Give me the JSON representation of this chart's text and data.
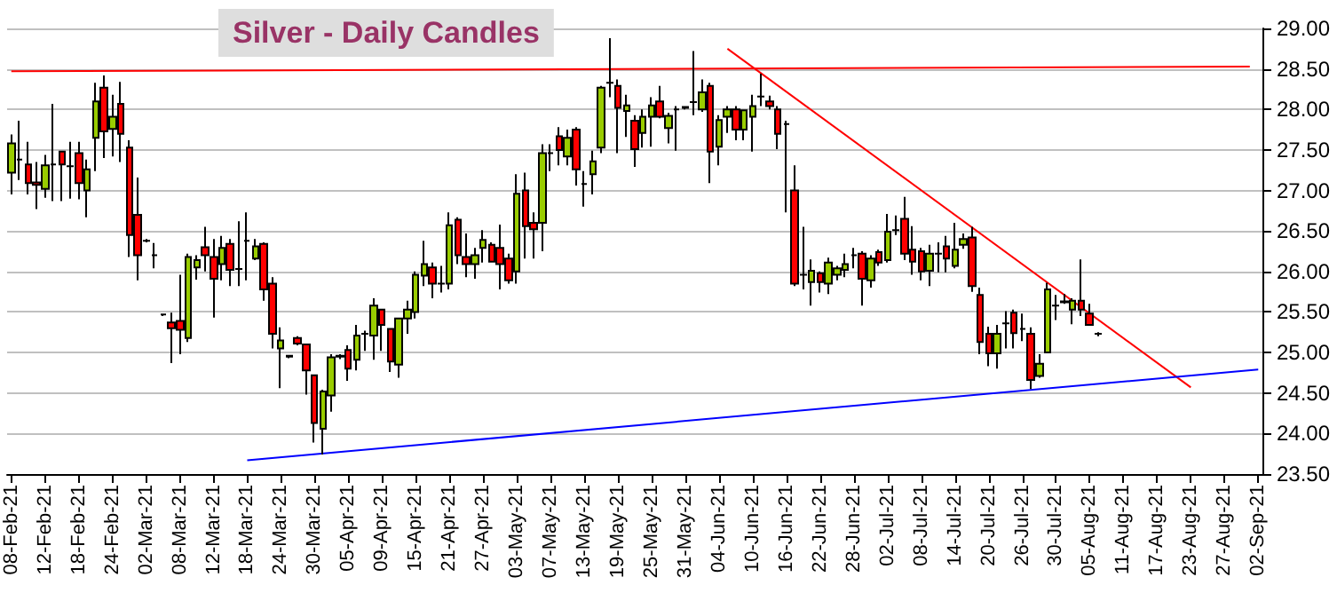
{
  "chart_data": {
    "type": "candlestick",
    "title": "Silver - Daily Candles",
    "categories": [
      "08-Feb-21",
      null,
      null,
      null,
      "12-Feb-21",
      null,
      null,
      null,
      "18-Feb-21",
      null,
      null,
      null,
      "24-Feb-21",
      null,
      null,
      null,
      "02-Mar-21",
      null,
      null,
      null,
      "08-Mar-21",
      null,
      null,
      null,
      "12-Mar-21",
      null,
      null,
      null,
      "18-Mar-21",
      null,
      null,
      null,
      "24-Mar-21",
      null,
      null,
      null,
      "30-Mar-21",
      null,
      null,
      null,
      "05-Apr-21",
      null,
      null,
      null,
      "09-Apr-21",
      null,
      null,
      null,
      "15-Apr-21",
      null,
      null,
      null,
      "21-Apr-21",
      null,
      null,
      null,
      "27-Apr-21",
      null,
      null,
      null,
      "03-May-21",
      null,
      null,
      null,
      "07-May-21",
      null,
      null,
      null,
      "13-May-21",
      null,
      null,
      null,
      "19-May-21",
      null,
      null,
      null,
      "25-May-21",
      null,
      null,
      null,
      "31-May-21",
      null,
      null,
      null,
      "04-Jun-21",
      null,
      null,
      null,
      "10-Jun-21",
      null,
      null,
      null,
      "16-Jun-21",
      null,
      null,
      null,
      "22-Jun-21",
      null,
      null,
      null,
      "28-Jun-21",
      null,
      null,
      null,
      "02-Jul-21",
      null,
      null,
      null,
      "08-Jul-21",
      null,
      null,
      null,
      "14-Jul-21",
      null,
      null,
      null,
      "20-Jul-21",
      null,
      null,
      null,
      "26-Jul-21",
      null,
      null,
      null,
      "30-Jul-21",
      null,
      null,
      null,
      "05-Aug-21",
      null,
      null,
      null,
      "11-Aug-21",
      null,
      null,
      null,
      "17-Aug-21",
      null,
      null,
      null,
      "23-Aug-21",
      null,
      null,
      null,
      "27-Aug-21",
      null,
      null,
      null,
      "02-Sep-21"
    ],
    "series": [
      {
        "type": "candlestick",
        "ohlc": [
          [
            27.22,
            27.69,
            26.95,
            27.58
          ],
          [
            27.38,
            27.86,
            27.13,
            27.38
          ],
          [
            27.32,
            27.6,
            26.95,
            27.09
          ],
          [
            27.1,
            27.35,
            26.77,
            27.07
          ],
          [
            27.02,
            27.44,
            26.91,
            27.31
          ],
          [
            27.32,
            28.07,
            26.87,
            27.32
          ],
          [
            27.48,
            27.49,
            26.87,
            27.32
          ],
          [
            27.3,
            27.6,
            26.9,
            27.3
          ],
          [
            27.46,
            27.6,
            26.89,
            27.09
          ],
          [
            27.0,
            27.38,
            26.67,
            27.26
          ],
          [
            27.65,
            28.33,
            27.24,
            28.1
          ],
          [
            28.27,
            28.42,
            27.4,
            27.73
          ],
          [
            27.76,
            28.18,
            27.42,
            27.91
          ],
          [
            28.07,
            28.34,
            27.35,
            27.7
          ],
          [
            27.53,
            27.62,
            26.18,
            26.45
          ],
          [
            26.7,
            27.16,
            25.89,
            26.2
          ],
          [
            26.38,
            26.4,
            26.36,
            26.38
          ],
          [
            26.2,
            26.35,
            26.04,
            26.2
          ],
          [
            25.47,
            25.48,
            25.45,
            25.47
          ],
          [
            25.37,
            25.49,
            24.87,
            25.3
          ],
          [
            25.39,
            25.96,
            24.98,
            25.28
          ],
          [
            25.18,
            26.22,
            25.13,
            26.18
          ],
          [
            26.05,
            26.2,
            25.9,
            26.14
          ],
          [
            26.3,
            26.55,
            26.0,
            26.2
          ],
          [
            26.18,
            26.4,
            25.43,
            25.91
          ],
          [
            26.09,
            26.44,
            25.89,
            26.29
          ],
          [
            26.34,
            26.4,
            25.82,
            26.02
          ],
          [
            26.03,
            26.62,
            25.82,
            26.03
          ],
          [
            26.38,
            26.73,
            25.89,
            26.38
          ],
          [
            26.16,
            26.4,
            26.14,
            26.31
          ],
          [
            26.34,
            26.36,
            25.64,
            25.78
          ],
          [
            25.85,
            25.93,
            25.05,
            25.23
          ],
          [
            25.05,
            25.31,
            24.56,
            25.15
          ],
          [
            24.95,
            24.97,
            24.93,
            24.96
          ],
          [
            25.18,
            25.2,
            25.09,
            25.11
          ],
          [
            25.1,
            25.1,
            24.48,
            24.78
          ],
          [
            24.72,
            24.72,
            23.89,
            24.13
          ],
          [
            24.06,
            24.54,
            23.74,
            24.52
          ],
          [
            24.47,
            24.98,
            24.27,
            24.94
          ],
          [
            24.95,
            24.98,
            24.92,
            24.96
          ],
          [
            25.03,
            25.09,
            24.65,
            24.8
          ],
          [
            24.91,
            25.34,
            24.78,
            25.21
          ],
          [
            25.23,
            25.27,
            25.02,
            25.23
          ],
          [
            25.21,
            25.67,
            24.91,
            25.58
          ],
          [
            25.53,
            25.54,
            25.02,
            25.34
          ],
          [
            25.29,
            25.29,
            24.76,
            24.89
          ],
          [
            24.85,
            25.43,
            24.69,
            25.42
          ],
          [
            25.42,
            25.64,
            25.23,
            25.53
          ],
          [
            25.5,
            26.0,
            25.42,
            25.96
          ],
          [
            25.95,
            26.38,
            25.82,
            26.09
          ],
          [
            26.05,
            26.11,
            25.67,
            25.85
          ],
          [
            25.85,
            26.07,
            25.74,
            25.85
          ],
          [
            25.85,
            26.73,
            25.78,
            26.57
          ],
          [
            26.64,
            26.67,
            26.09,
            26.2
          ],
          [
            26.18,
            26.47,
            25.93,
            26.09
          ],
          [
            26.09,
            26.29,
            25.91,
            26.2
          ],
          [
            26.29,
            26.51,
            26.11,
            26.39
          ],
          [
            26.33,
            26.36,
            26.11,
            26.12
          ],
          [
            26.29,
            26.58,
            25.78,
            26.09
          ],
          [
            26.16,
            26.22,
            25.85,
            25.89
          ],
          [
            26.0,
            27.2,
            25.85,
            26.96
          ],
          [
            27.0,
            27.22,
            26.16,
            26.56
          ],
          [
            26.6,
            26.73,
            26.16,
            26.52
          ],
          [
            26.6,
            27.57,
            26.25,
            27.46
          ],
          [
            27.46,
            27.57,
            27.24,
            27.46
          ],
          [
            27.67,
            27.78,
            27.31,
            27.5
          ],
          [
            27.42,
            27.75,
            27.31,
            27.65
          ],
          [
            27.75,
            27.78,
            27.06,
            27.26
          ],
          [
            27.08,
            27.24,
            26.8,
            27.08
          ],
          [
            27.2,
            27.49,
            26.95,
            27.36
          ],
          [
            27.53,
            28.29,
            27.46,
            28.27
          ],
          [
            28.33,
            28.88,
            28.15,
            28.33
          ],
          [
            28.29,
            28.37,
            27.46,
            28.02
          ],
          [
            27.98,
            28.18,
            27.66,
            28.05
          ],
          [
            27.86,
            27.93,
            27.29,
            27.51
          ],
          [
            27.71,
            28.0,
            27.53,
            27.91
          ],
          [
            27.91,
            28.15,
            27.54,
            28.05
          ],
          [
            28.1,
            28.29,
            27.89,
            27.91
          ],
          [
            27.77,
            27.96,
            27.58,
            27.92
          ],
          [
            28.0,
            28.04,
            27.49,
            28.0
          ],
          [
            28.02,
            28.04,
            28.0,
            28.03
          ],
          [
            28.09,
            28.72,
            27.93,
            28.09
          ],
          [
            28.0,
            28.37,
            27.97,
            28.21
          ],
          [
            28.29,
            28.33,
            27.09,
            27.48
          ],
          [
            27.54,
            27.93,
            27.31,
            27.87
          ],
          [
            27.91,
            28.04,
            27.71,
            28.0
          ],
          [
            28.0,
            28.04,
            27.62,
            27.75
          ],
          [
            27.75,
            28.0,
            27.62,
            27.99
          ],
          [
            27.91,
            28.18,
            27.48,
            28.04
          ],
          [
            28.16,
            28.44,
            28.04,
            28.16
          ],
          [
            28.1,
            28.17,
            28.0,
            28.04
          ],
          [
            28.0,
            28.04,
            27.51,
            27.7
          ],
          [
            27.82,
            27.86,
            26.73,
            27.82
          ],
          [
            27.0,
            27.31,
            25.82,
            25.85
          ],
          [
            25.96,
            26.55,
            25.78,
            25.96
          ],
          [
            25.87,
            26.15,
            25.58,
            26.01
          ],
          [
            25.98,
            26.0,
            25.74,
            25.87
          ],
          [
            25.85,
            26.17,
            25.72,
            26.11
          ],
          [
            25.96,
            26.07,
            25.89,
            26.04
          ],
          [
            26.02,
            26.22,
            25.93,
            26.09
          ],
          [
            26.2,
            26.29,
            26.04,
            26.2
          ],
          [
            26.22,
            26.25,
            25.58,
            25.91
          ],
          [
            25.89,
            26.2,
            25.8,
            26.16
          ],
          [
            26.24,
            26.27,
            26.07,
            26.11
          ],
          [
            26.14,
            26.71,
            26.11,
            26.49
          ],
          [
            26.51,
            26.69,
            26.45,
            26.51
          ],
          [
            26.65,
            26.92,
            26.14,
            26.22
          ],
          [
            26.27,
            26.56,
            25.96,
            26.12
          ],
          [
            26.25,
            26.29,
            25.89,
            26.0
          ],
          [
            26.01,
            26.33,
            25.82,
            26.22
          ],
          [
            26.22,
            26.36,
            25.99,
            26.22
          ],
          [
            26.31,
            26.44,
            25.99,
            26.16
          ],
          [
            26.07,
            26.6,
            26.04,
            26.27
          ],
          [
            26.33,
            26.47,
            26.28,
            26.4
          ],
          [
            26.42,
            26.55,
            25.75,
            25.82
          ],
          [
            25.71,
            25.8,
            24.98,
            25.13
          ],
          [
            25.23,
            25.32,
            24.83,
            24.99
          ],
          [
            24.99,
            25.34,
            24.8,
            25.23
          ],
          [
            25.36,
            25.51,
            25.05,
            25.36
          ],
          [
            25.49,
            25.53,
            25.05,
            25.24
          ],
          [
            25.29,
            25.48,
            25.14,
            25.29
          ],
          [
            25.23,
            25.31,
            24.55,
            24.66
          ],
          [
            24.71,
            24.98,
            24.69,
            24.86
          ],
          [
            25.0,
            25.86,
            25.0,
            25.78
          ],
          [
            25.58,
            25.71,
            25.4,
            25.58
          ],
          [
            25.62,
            25.72,
            25.6,
            25.63
          ],
          [
            25.53,
            25.67,
            25.35,
            25.64
          ],
          [
            25.64,
            26.15,
            25.45,
            25.53
          ],
          [
            25.48,
            25.6,
            25.33,
            25.34
          ],
          [
            25.23,
            25.25,
            25.2,
            25.23
          ],
          null,
          null,
          null,
          null,
          null,
          null,
          null,
          null,
          null,
          null,
          null,
          null,
          null,
          null,
          null,
          null,
          null,
          null,
          null
        ],
        "colors": [
          "#99cc00",
          "#000000",
          "#ff0000",
          "#ff0000",
          "#99cc00",
          "#000000",
          "#ff0000",
          "#000000",
          "#ff0000",
          "#99cc00",
          "#99cc00",
          "#ff0000",
          "#99cc00",
          "#ff0000",
          "#ff0000",
          "#ff0000",
          "#000000",
          "#000000",
          "#000000",
          "#ff0000",
          "#ff0000",
          "#99cc00",
          "#99cc00",
          "#ff0000",
          "#ff0000",
          "#99cc00",
          "#ff0000",
          "#000000",
          "#000000",
          "#99cc00",
          "#ff0000",
          "#ff0000",
          "#99cc00",
          "#000000",
          "#ff0000",
          "#ff0000",
          "#ff0000",
          "#99cc00",
          "#99cc00",
          "#000000",
          "#ff0000",
          "#99cc00",
          "#000000",
          "#99cc00",
          "#ff0000",
          "#ff0000",
          "#99cc00",
          "#99cc00",
          "#99cc00",
          "#99cc00",
          "#ff0000",
          "#000000",
          "#99cc00",
          "#ff0000",
          "#ff0000",
          "#99cc00",
          "#99cc00",
          "#ff0000",
          "#ff0000",
          "#ff0000",
          "#99cc00",
          "#ff0000",
          "#ff0000",
          "#99cc00",
          "#000000",
          "#ff0000",
          "#99cc00",
          "#ff0000",
          "#000000",
          "#99cc00",
          "#99cc00",
          "#000000",
          "#ff0000",
          "#99cc00",
          "#ff0000",
          "#99cc00",
          "#99cc00",
          "#ff0000",
          "#99cc00",
          "#000000",
          "#000000",
          "#000000",
          "#99cc00",
          "#ff0000",
          "#99cc00",
          "#99cc00",
          "#ff0000",
          "#99cc00",
          "#99cc00",
          "#000000",
          "#ff0000",
          "#ff0000",
          "#000000",
          "#ff0000",
          "#000000",
          "#99cc00",
          "#ff0000",
          "#99cc00",
          "#99cc00",
          "#99cc00",
          "#000000",
          "#ff0000",
          "#99cc00",
          "#ff0000",
          "#99cc00",
          "#000000",
          "#ff0000",
          "#ff0000",
          "#ff0000",
          "#99cc00",
          "#000000",
          "#ff0000",
          "#99cc00",
          "#99cc00",
          "#ff0000",
          "#ff0000",
          "#ff0000",
          "#99cc00",
          "#000000",
          "#ff0000",
          "#000000",
          "#ff0000",
          "#99cc00",
          "#99cc00",
          "#000000",
          "#000000",
          "#99cc00",
          "#ff0000",
          "#ff0000",
          "#000000",
          null,
          null,
          null,
          null,
          null,
          null,
          null,
          null,
          null,
          null,
          null,
          null,
          null,
          null,
          null,
          null,
          null,
          null,
          null
        ]
      },
      {
        "type": "line",
        "color": "#ff0000",
        "values": [
          28.47,
          null,
          null,
          null,
          null,
          null,
          null,
          null,
          null,
          null,
          null,
          null,
          null,
          null,
          null,
          null,
          null,
          null,
          null,
          null,
          null,
          null,
          null,
          null,
          null,
          null,
          null,
          null,
          null,
          null,
          null,
          null,
          null,
          null,
          null,
          null,
          null,
          null,
          null,
          null,
          null,
          null,
          null,
          null,
          null,
          null,
          null,
          null,
          null,
          null,
          null,
          null,
          null,
          null,
          null,
          null,
          null,
          null,
          null,
          null,
          null,
          null,
          null,
          null,
          null,
          null,
          null,
          null,
          null,
          null,
          null,
          null,
          null,
          null,
          null,
          null,
          null,
          null,
          null,
          null,
          null,
          null,
          null,
          null,
          null,
          null,
          null,
          null,
          null,
          null,
          null,
          null,
          null,
          null,
          null,
          null,
          null,
          null,
          null,
          null,
          null,
          null,
          null,
          null,
          null,
          null,
          null,
          null,
          null,
          null,
          null,
          null,
          null,
          null,
          null,
          null,
          null,
          null,
          null,
          null,
          null,
          null,
          null,
          null,
          null,
          null,
          null,
          null,
          null,
          null,
          null,
          null,
          null,
          null,
          null,
          null,
          null,
          null,
          null,
          null,
          null,
          null,
          null,
          null,
          null,
          null,
          null,
          28.53,
          null
        ]
      },
      {
        "type": "line",
        "color": "#ff0000",
        "values": [
          null,
          null,
          null,
          null,
          null,
          null,
          null,
          null,
          null,
          null,
          null,
          null,
          null,
          null,
          null,
          null,
          null,
          null,
          null,
          null,
          null,
          null,
          null,
          null,
          null,
          null,
          null,
          null,
          null,
          null,
          null,
          null,
          null,
          null,
          null,
          null,
          null,
          null,
          null,
          null,
          null,
          null,
          null,
          null,
          null,
          null,
          null,
          null,
          null,
          null,
          null,
          null,
          null,
          null,
          null,
          null,
          null,
          null,
          null,
          null,
          null,
          null,
          null,
          null,
          null,
          null,
          null,
          null,
          null,
          null,
          null,
          null,
          null,
          null,
          null,
          null,
          null,
          null,
          null,
          null,
          null,
          null,
          null,
          null,
          null,
          28.75,
          null,
          null,
          null,
          null,
          null,
          null,
          null,
          null,
          null,
          null,
          null,
          null,
          null,
          null,
          null,
          null,
          null,
          null,
          null,
          null,
          null,
          null,
          null,
          null,
          null,
          null,
          null,
          null,
          null,
          null,
          null,
          null,
          null,
          null,
          null,
          null,
          null,
          null,
          null,
          null,
          null,
          null,
          null,
          null,
          null,
          null,
          null,
          null,
          null,
          null,
          null,
          null,
          null,
          null,
          24.57,
          null,
          null,
          null,
          null,
          null,
          null,
          null,
          null
        ]
      },
      {
        "type": "line",
        "color": "#0000ff",
        "values": [
          null,
          null,
          null,
          null,
          null,
          null,
          null,
          null,
          null,
          null,
          null,
          null,
          null,
          null,
          null,
          null,
          null,
          null,
          null,
          null,
          null,
          null,
          null,
          null,
          null,
          null,
          null,
          null,
          23.67,
          null,
          null,
          null,
          null,
          null,
          null,
          null,
          null,
          null,
          null,
          null,
          null,
          null,
          null,
          null,
          null,
          null,
          null,
          null,
          null,
          null,
          null,
          null,
          null,
          null,
          null,
          null,
          null,
          null,
          null,
          null,
          null,
          null,
          null,
          null,
          null,
          null,
          null,
          null,
          null,
          null,
          null,
          null,
          null,
          null,
          null,
          null,
          null,
          null,
          null,
          null,
          null,
          null,
          null,
          null,
          null,
          null,
          null,
          null,
          null,
          null,
          null,
          null,
          null,
          null,
          null,
          null,
          null,
          null,
          null,
          null,
          null,
          null,
          null,
          null,
          null,
          null,
          null,
          null,
          null,
          null,
          null,
          null,
          null,
          null,
          null,
          null,
          null,
          null,
          null,
          null,
          null,
          null,
          null,
          null,
          null,
          null,
          null,
          null,
          null,
          null,
          null,
          null,
          null,
          null,
          null,
          null,
          null,
          null,
          null,
          null,
          null,
          null,
          null,
          null,
          null,
          null,
          null,
          null,
          24.79
        ]
      }
    ],
    "ylim": [
      23.5,
      29
    ],
    "yticks": [
      {
        "value": 23.5,
        "label": "23.50"
      },
      {
        "value": 24,
        "label": "24.00"
      },
      {
        "value": 24.5,
        "label": "24.50"
      },
      {
        "value": 25,
        "label": "25.00"
      },
      {
        "value": 25.5,
        "label": "25.50"
      },
      {
        "value": 26,
        "label": "26.00"
      },
      {
        "value": 26.5,
        "label": "26.50"
      },
      {
        "value": 27,
        "label": "27.00"
      },
      {
        "value": 27.5,
        "label": "27.50"
      },
      {
        "value": 28,
        "label": "28.00"
      },
      {
        "value": 28.5,
        "label": "28.50"
      },
      {
        "value": 29,
        "label": "29.00"
      }
    ],
    "grid": "y"
  }
}
